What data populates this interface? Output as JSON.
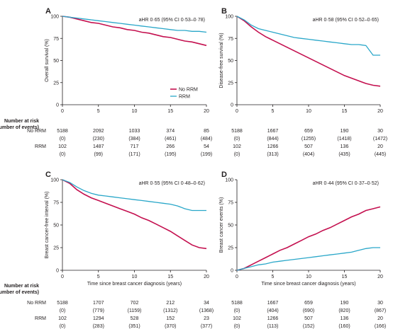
{
  "colors": {
    "no_rrm": "#c4104f",
    "rrm": "#2aa7c9",
    "axis": "#231f20"
  },
  "number_at_risk_label": [
    "Number at risk",
    "(number of events)"
  ],
  "row_labels": [
    "No RRM",
    "RRM"
  ],
  "legend_labels": [
    "No RRM",
    "RRM"
  ],
  "chart_data": [
    {
      "id": "A",
      "type": "line",
      "ylabel": "Overall survival (%)",
      "xlabel": "",
      "annotation": "aHR 0·65 (95% CI 0·53–0·78)",
      "xlim": [
        0,
        20
      ],
      "ylim": [
        0,
        100
      ],
      "xticks": [
        0,
        5,
        10,
        15,
        20
      ],
      "yticks": [
        0,
        25,
        50,
        75,
        100
      ],
      "legend": "mid-right",
      "series": [
        {
          "name": "No RRM",
          "x": [
            0,
            1,
            2,
            3,
            4,
            5,
            6,
            7,
            8,
            9,
            10,
            11,
            12,
            13,
            14,
            15,
            16,
            17,
            18,
            19,
            20
          ],
          "y": [
            100,
            99,
            97,
            95,
            93,
            92,
            90,
            88,
            87,
            85,
            84,
            82,
            81,
            79,
            77,
            76,
            74,
            72,
            71,
            69,
            67
          ]
        },
        {
          "name": "RRM",
          "x": [
            0,
            1,
            2,
            3,
            4,
            5,
            6,
            7,
            8,
            9,
            10,
            11,
            12,
            13,
            14,
            15,
            16,
            17,
            18,
            19,
            20
          ],
          "y": [
            100,
            99,
            98,
            97,
            96,
            95,
            94,
            93,
            92,
            91,
            90,
            89,
            88,
            87,
            86,
            85,
            84,
            84,
            83,
            83,
            82
          ]
        }
      ],
      "risk": {
        "no_rrm": {
          "at_risk": [
            "5188",
            "2092",
            "1033",
            "374",
            "85"
          ],
          "events": [
            "(0)",
            "(230)",
            "(384)",
            "(461)",
            "(484)"
          ]
        },
        "rrm": {
          "at_risk": [
            "102",
            "1487",
            "717",
            "266",
            "54"
          ],
          "events": [
            "(0)",
            "(99)",
            "(171)",
            "(195)",
            "(199)"
          ]
        }
      }
    },
    {
      "id": "B",
      "type": "line",
      "ylabel": "Disease-free survival (%)",
      "xlabel": "",
      "annotation": "aHR 0·58 (95% CI 0·52–0·65)",
      "xlim": [
        0,
        20
      ],
      "ylim": [
        0,
        100
      ],
      "xticks": [
        0,
        5,
        10,
        15,
        20
      ],
      "yticks": [
        0,
        25,
        50,
        75,
        100
      ],
      "series": [
        {
          "name": "No RRM",
          "x": [
            0,
            1,
            2,
            3,
            4,
            5,
            6,
            7,
            8,
            9,
            10,
            11,
            12,
            13,
            14,
            15,
            16,
            17,
            18,
            19,
            20
          ],
          "y": [
            100,
            95,
            88,
            82,
            77,
            73,
            69,
            65,
            61,
            57,
            53,
            49,
            45,
            41,
            37,
            33,
            30,
            27,
            24,
            22,
            21
          ]
        },
        {
          "name": "RRM",
          "x": [
            0,
            1,
            2,
            3,
            4,
            5,
            6,
            7,
            8,
            9,
            10,
            11,
            12,
            13,
            14,
            15,
            16,
            17,
            18,
            19,
            20
          ],
          "y": [
            100,
            96,
            90,
            86,
            84,
            82,
            80,
            78,
            76,
            75,
            74,
            73,
            72,
            71,
            70,
            69,
            68,
            68,
            67,
            56,
            56
          ]
        }
      ],
      "risk": {
        "no_rrm": {
          "at_risk": [
            "5188",
            "1667",
            "659",
            "190",
            "30"
          ],
          "events": [
            "(0)",
            "(844)",
            "(1255)",
            "(1418)",
            "(1472)"
          ]
        },
        "rrm": {
          "at_risk": [
            "102",
            "1266",
            "507",
            "136",
            "20"
          ],
          "events": [
            "(0)",
            "(313)",
            "(404)",
            "(435)",
            "(445)"
          ]
        }
      }
    },
    {
      "id": "C",
      "type": "line",
      "ylabel": "Breast cancer-free interval (%)",
      "xlabel": "Time since breast cancer diagnosis (years)",
      "annotation": "aHR 0·55 (95% CI 0·48–0·62)",
      "xlim": [
        0,
        20
      ],
      "ylim": [
        0,
        100
      ],
      "xticks": [
        0,
        5,
        10,
        15,
        20
      ],
      "yticks": [
        0,
        25,
        50,
        75,
        100
      ],
      "series": [
        {
          "name": "No RRM",
          "x": [
            0,
            1,
            2,
            3,
            4,
            5,
            6,
            7,
            8,
            9,
            10,
            11,
            12,
            13,
            14,
            15,
            16,
            17,
            18,
            19,
            20
          ],
          "y": [
            100,
            96,
            89,
            84,
            80,
            77,
            74,
            71,
            68,
            65,
            62,
            58,
            55,
            51,
            47,
            43,
            38,
            33,
            28,
            25,
            24
          ]
        },
        {
          "name": "RRM",
          "x": [
            0,
            1,
            2,
            3,
            4,
            5,
            6,
            7,
            8,
            9,
            10,
            11,
            12,
            13,
            14,
            15,
            16,
            17,
            18,
            19,
            20
          ],
          "y": [
            100,
            97,
            92,
            88,
            85,
            83,
            82,
            81,
            80,
            79,
            78,
            77,
            76,
            75,
            74,
            73,
            71,
            68,
            66,
            66,
            66
          ]
        }
      ],
      "risk": {
        "no_rrm": {
          "at_risk": [
            "5188",
            "1707",
            "702",
            "212",
            "34"
          ],
          "events": [
            "(0)",
            "(779)",
            "(1159)",
            "(1312)",
            "(1368)"
          ]
        },
        "rrm": {
          "at_risk": [
            "102",
            "1294",
            "528",
            "152",
            "23"
          ],
          "events": [
            "(0)",
            "(283)",
            "(351)",
            "(370)",
            "(377)"
          ]
        }
      }
    },
    {
      "id": "D",
      "type": "line",
      "ylabel": "Breast cancer events (%)",
      "xlabel": "Time since breast cancer diagnosis (years)",
      "annotation": "aHR 0·44 (95% CI 0·37–0·52)",
      "xlim": [
        0,
        20
      ],
      "ylim": [
        0,
        100
      ],
      "xticks": [
        0,
        5,
        10,
        15,
        20
      ],
      "yticks": [
        0,
        25,
        50,
        75,
        100
      ],
      "series": [
        {
          "name": "No RRM",
          "x": [
            0,
            1,
            2,
            3,
            4,
            5,
            6,
            7,
            8,
            9,
            10,
            11,
            12,
            13,
            14,
            15,
            16,
            17,
            18,
            19,
            20
          ],
          "y": [
            0,
            2,
            6,
            10,
            14,
            18,
            22,
            25,
            29,
            33,
            37,
            40,
            44,
            47,
            51,
            55,
            59,
            62,
            66,
            68,
            70
          ]
        },
        {
          "name": "RRM",
          "x": [
            0,
            1,
            2,
            3,
            4,
            5,
            6,
            7,
            8,
            9,
            10,
            11,
            12,
            13,
            14,
            15,
            16,
            17,
            18,
            19,
            20
          ],
          "y": [
            0,
            2,
            4,
            6,
            7,
            9,
            10,
            11,
            12,
            13,
            14,
            15,
            16,
            17,
            18,
            19,
            20,
            22,
            24,
            25,
            25
          ]
        }
      ],
      "risk": {
        "no_rrm": {
          "at_risk": [
            "5188",
            "1667",
            "659",
            "190",
            "30"
          ],
          "events": [
            "(0)",
            "(404)",
            "(690)",
            "(820)",
            "(867)"
          ]
        },
        "rrm": {
          "at_risk": [
            "102",
            "1266",
            "507",
            "136",
            "20"
          ],
          "events": [
            "(0)",
            "(113)",
            "(152)",
            "(160)",
            "(166)"
          ]
        }
      }
    }
  ]
}
